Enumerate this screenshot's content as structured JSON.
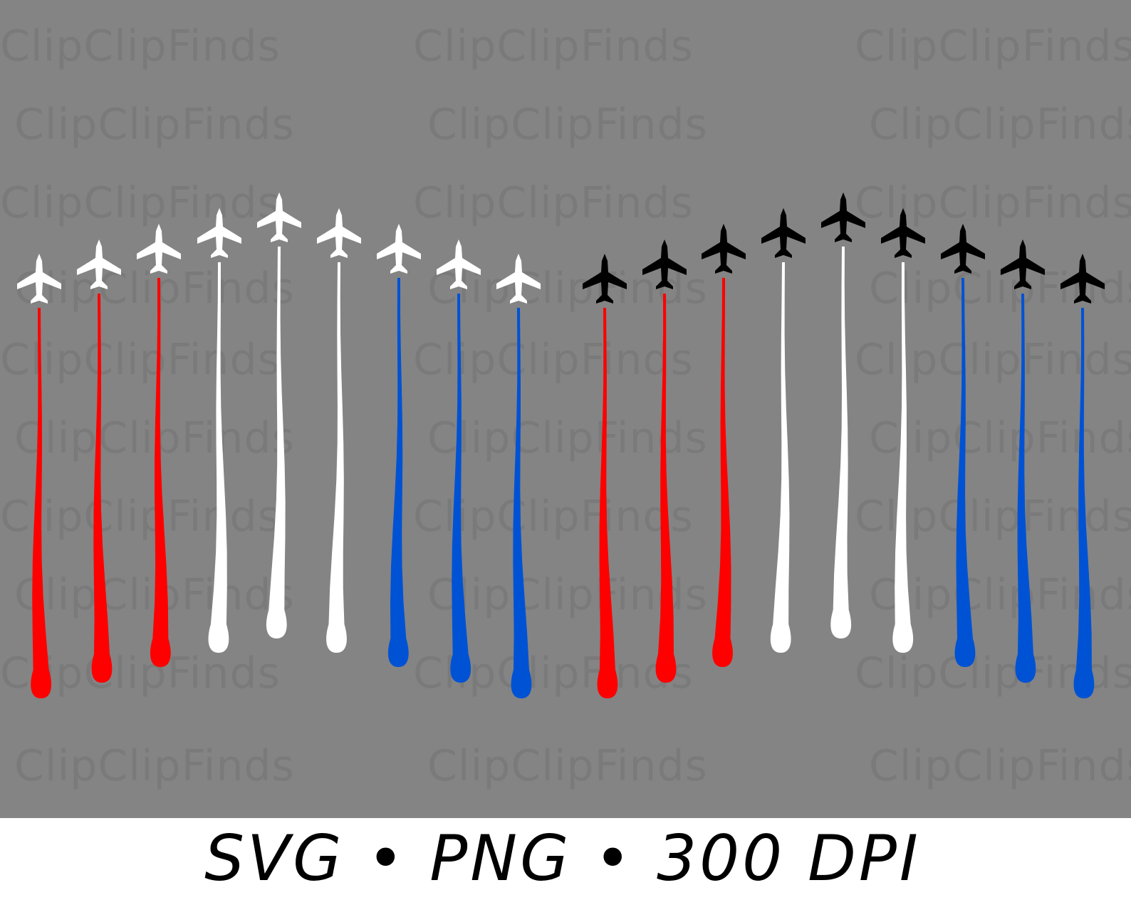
{
  "watermark_text": "ClipClipFinds",
  "caption": "SVG • PNG • 300 DPI",
  "colors": {
    "background": "#848484",
    "red": "#fe0000",
    "white": "#ffffff",
    "blue": "#0052d4",
    "black_jet": "#000000"
  },
  "formations": [
    {
      "name": "white-jet-formation",
      "jet_color": "white",
      "trails": [
        "red",
        "red",
        "red",
        "white",
        "white",
        "white",
        "blue",
        "blue",
        "blue"
      ]
    },
    {
      "name": "black-jet-formation",
      "jet_color": "black_jet",
      "trails": [
        "red",
        "red",
        "red",
        "white",
        "white",
        "white",
        "blue",
        "blue",
        "blue"
      ]
    }
  ]
}
